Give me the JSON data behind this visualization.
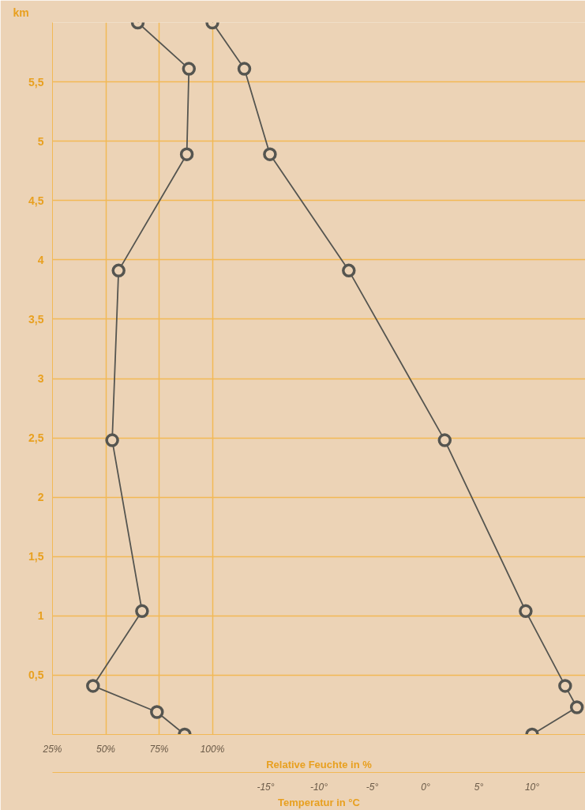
{
  "chart_data": {
    "type": "line",
    "xlabel": "Relative Feuchte in %",
    "x2label": "Temperatur in °C",
    "ylabel": "km",
    "xlim": [
      25,
      275
    ],
    "xticks": [
      {
        "value": 25,
        "label": "25%"
      },
      {
        "value": 50,
        "label": "50%"
      },
      {
        "value": 75,
        "label": "75%"
      },
      {
        "value": 100,
        "label": "100%"
      }
    ],
    "x2lim": [
      -35,
      15
    ],
    "x2ticks": [
      {
        "value": -15,
        "label": "-15°"
      },
      {
        "value": -10,
        "label": "-10°"
      },
      {
        "value": -5,
        "label": "-5°"
      },
      {
        "value": 0,
        "label": "0°"
      },
      {
        "value": 5,
        "label": "5°"
      },
      {
        "value": 10,
        "label": "10°"
      }
    ],
    "ylim": [
      0,
      6
    ],
    "yticks": [
      {
        "value": 0.5,
        "label": "0,5"
      },
      {
        "value": 1,
        "label": "1"
      },
      {
        "value": 1.5,
        "label": "1,5"
      },
      {
        "value": 2,
        "label": "2"
      },
      {
        "value": 2.5,
        "label": "2,5"
      },
      {
        "value": 3,
        "label": "3"
      },
      {
        "value": 3.5,
        "label": "3,5"
      },
      {
        "value": 4,
        "label": "4"
      },
      {
        "value": 4.5,
        "label": "4,5"
      },
      {
        "value": 5,
        "label": "5"
      },
      {
        "value": 5.5,
        "label": "5,5"
      }
    ],
    "grid": true,
    "marker": "circle",
    "line_style": "solid",
    "series": [
      {
        "color": "#555550",
        "x": [
          87,
          74,
          44,
          67,
          53,
          56,
          88,
          89,
          65
        ],
        "values": [
          0,
          0.19,
          0.41,
          1.04,
          2.48,
          3.91,
          4.89,
          5.61,
          6.0
        ]
      },
      {
        "color": "#555550",
        "axis": "x2",
        "x": [
          10,
          14.2,
          13.1,
          9.4,
          1.8,
          -7.2,
          -14.6,
          -17,
          -20
        ],
        "values": [
          0,
          0.23,
          0.41,
          1.04,
          2.48,
          3.91,
          4.89,
          5.61,
          6.0
        ]
      }
    ]
  }
}
